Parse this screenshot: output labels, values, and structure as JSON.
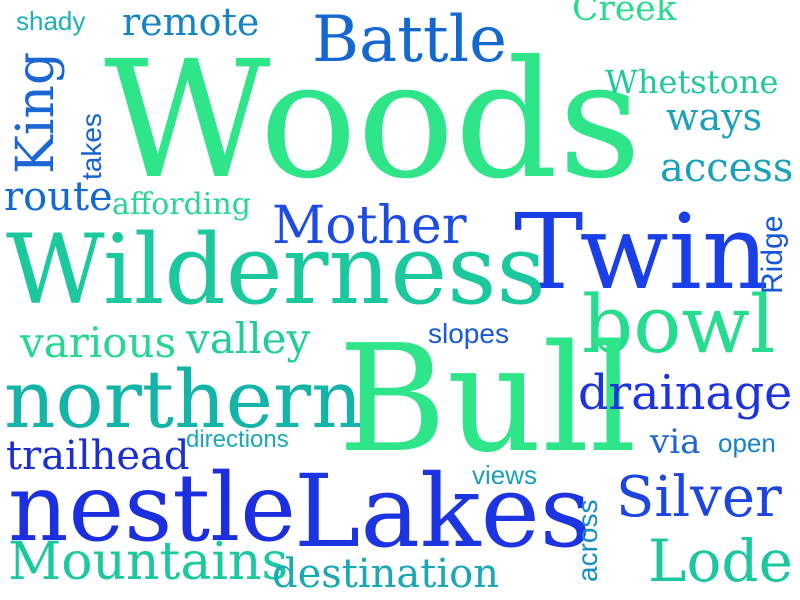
{
  "word_cloud": {
    "colors": {
      "green": "#2ee58a",
      "teal_green": "#1fd098",
      "teal": "#15b4a8",
      "cyan": "#1fa8b7",
      "blue_teal": "#1684c3",
      "blue": "#1360d6",
      "royal": "#1a3fe6",
      "navy": "#1c2fe0"
    },
    "words": [
      {
        "text": "shady"
      },
      {
        "text": "remote"
      },
      {
        "text": "Battle"
      },
      {
        "text": "Creek"
      },
      {
        "text": "Woods"
      },
      {
        "text": "Whetstone"
      },
      {
        "text": "King"
      },
      {
        "text": "takes"
      },
      {
        "text": "ways"
      },
      {
        "text": "access"
      },
      {
        "text": "route"
      },
      {
        "text": "affording"
      },
      {
        "text": "Mother"
      },
      {
        "text": "Twin"
      },
      {
        "text": "Ridge"
      },
      {
        "text": "Wilderness"
      },
      {
        "text": "bowl"
      },
      {
        "text": "various"
      },
      {
        "text": "valley"
      },
      {
        "text": "slopes"
      },
      {
        "text": "northern"
      },
      {
        "text": "Bull"
      },
      {
        "text": "drainage"
      },
      {
        "text": "trailhead"
      },
      {
        "text": "directions"
      },
      {
        "text": "via"
      },
      {
        "text": "open"
      },
      {
        "text": "views"
      },
      {
        "text": "nestle"
      },
      {
        "text": "Lakes"
      },
      {
        "text": "Silver"
      },
      {
        "text": "across"
      },
      {
        "text": "Lode"
      },
      {
        "text": "Mountains"
      },
      {
        "text": "destination"
      }
    ]
  }
}
